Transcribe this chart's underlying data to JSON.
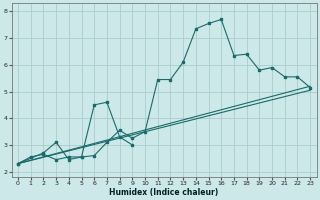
{
  "xlabel": "Humidex (Indice chaleur)",
  "background_color": "#cce8e8",
  "grid_color": "#aacccc",
  "line_color": "#1a6b6b",
  "xlim": [
    -0.5,
    23.5
  ],
  "ylim": [
    1.8,
    8.3
  ],
  "xticks": [
    0,
    1,
    2,
    3,
    4,
    5,
    6,
    7,
    8,
    9,
    10,
    11,
    12,
    13,
    14,
    15,
    16,
    17,
    18,
    19,
    20,
    21,
    22,
    23
  ],
  "yticks": [
    2,
    3,
    4,
    5,
    6,
    7,
    8
  ],
  "series1_x": [
    0,
    1,
    2,
    3,
    4,
    5,
    6,
    7,
    8,
    9,
    10,
    11,
    12,
    13,
    14,
    15,
    16,
    17,
    18,
    19,
    20,
    21,
    22,
    23
  ],
  "series1_y": [
    2.3,
    2.55,
    2.65,
    2.45,
    2.55,
    2.55,
    2.6,
    3.1,
    3.55,
    3.25,
    3.5,
    5.45,
    5.45,
    6.1,
    7.35,
    7.55,
    7.7,
    6.35,
    6.4,
    5.8,
    5.9,
    5.55,
    5.55,
    5.15
  ],
  "series2_x": [
    0,
    2,
    3,
    4,
    5,
    6,
    7,
    8,
    9
  ],
  "series2_y": [
    2.3,
    2.7,
    3.1,
    2.45,
    2.55,
    4.5,
    4.6,
    3.3,
    3.0
  ],
  "series3_x": [
    0,
    23
  ],
  "series3_y": [
    2.3,
    5.2
  ],
  "series4_x": [
    0,
    23
  ],
  "series4_y": [
    2.3,
    5.05
  ]
}
